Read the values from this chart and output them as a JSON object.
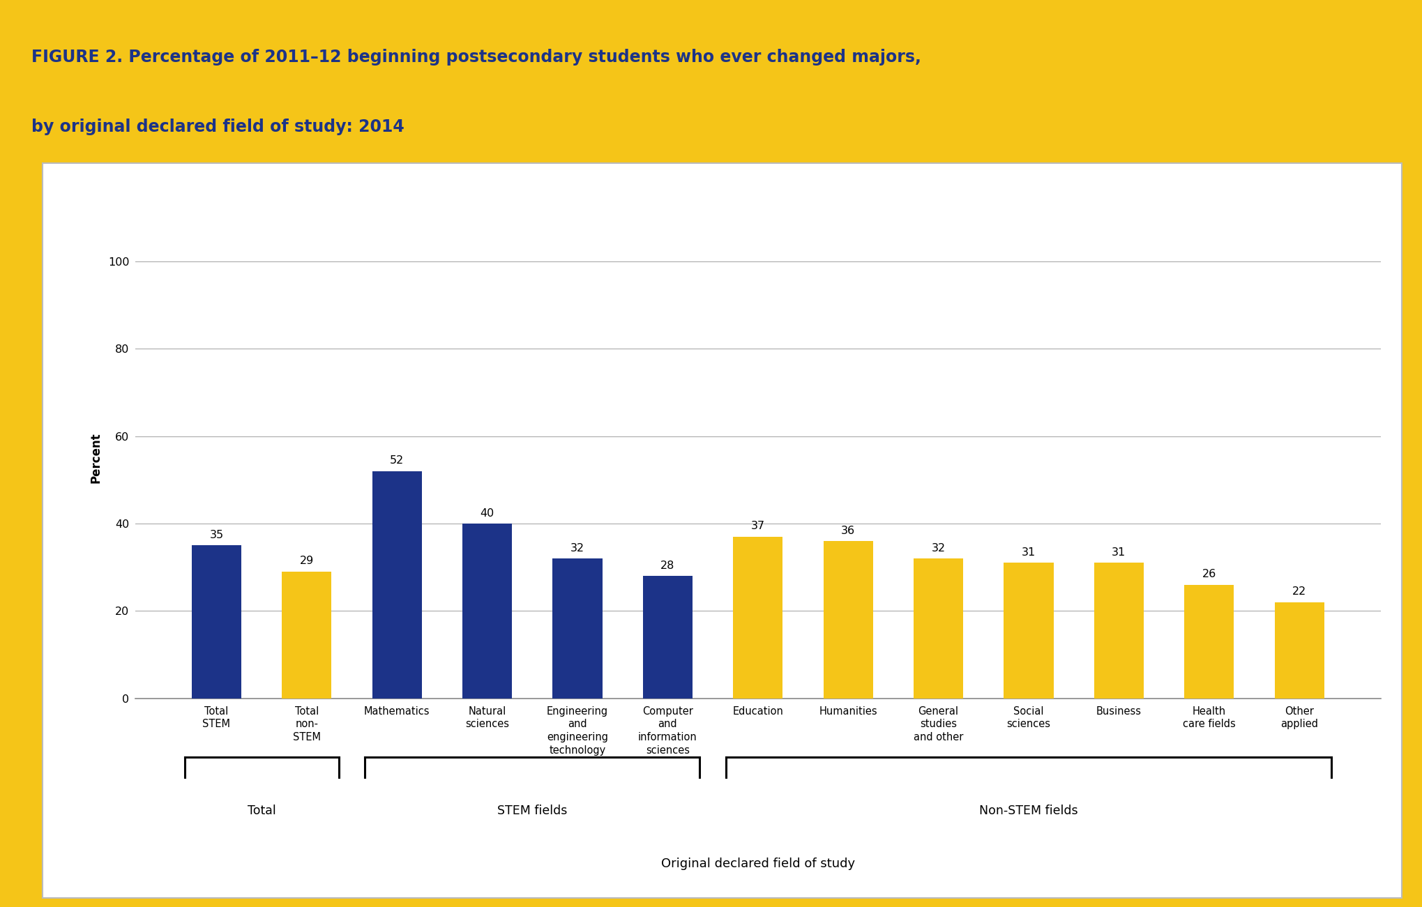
{
  "title_line1": "FIGURE 2. Percentage of 2011–12 beginning postsecondary students who ever changed majors,",
  "title_line2": "by original declared field of study: 2014",
  "title_color": "#1c3388",
  "title_bg_color": "#f5c518",
  "chart_bg_color": "#ffffff",
  "outer_bg_color": "#f5c518",
  "chart_border_color": "#cccccc",
  "ylabel": "Percent",
  "xlabel": "Original declared field of study",
  "categories": [
    "Total\nSTEM",
    "Total\nnon-\nSTEM",
    "Mathematics",
    "Natural\nsciences",
    "Engineering\nand\nengineering\ntechnology",
    "Computer\nand\ninformation\nsciences",
    "Education",
    "Humanities",
    "General\nstudies\nand other",
    "Social\nsciences",
    "Business",
    "Health\ncare fields",
    "Other\napplied"
  ],
  "values": [
    35,
    29,
    52,
    40,
    32,
    28,
    37,
    36,
    32,
    31,
    31,
    26,
    22
  ],
  "bar_colors": [
    "#1c3388",
    "#f5c518",
    "#1c3388",
    "#1c3388",
    "#1c3388",
    "#1c3388",
    "#f5c518",
    "#f5c518",
    "#f5c518",
    "#f5c518",
    "#f5c518",
    "#f5c518",
    "#f5c518"
  ],
  "ylim": [
    0,
    110
  ],
  "yticks": [
    0,
    20,
    40,
    60,
    80,
    100
  ],
  "grid_color": "#aaaaaa",
  "bar_width": 0.55,
  "label_fontsize": 10.5,
  "value_fontsize": 11.5,
  "ylabel_fontsize": 12,
  "xlabel_fontsize": 13,
  "title_fontsize": 17,
  "group_info": [
    {
      "label": "Total",
      "start": 0,
      "end": 1
    },
    {
      "label": "STEM fields",
      "start": 2,
      "end": 5
    },
    {
      "label": "Non-STEM fields",
      "start": 6,
      "end": 12
    }
  ]
}
